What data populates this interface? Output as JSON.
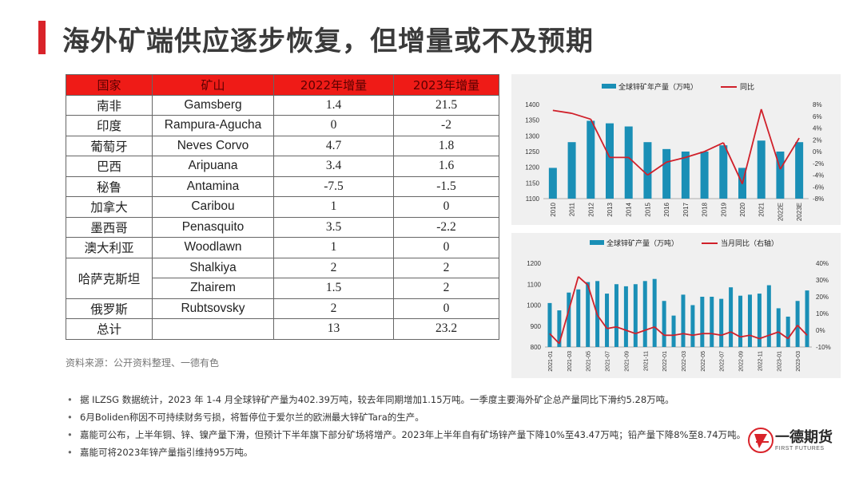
{
  "page": {
    "title": "海外矿端供应逐步恢复，但增量或不及预期"
  },
  "table": {
    "headers": [
      "国家",
      "矿山",
      "2022年增量",
      "2023年增量"
    ],
    "rows": [
      {
        "country": "南非",
        "mine": "Gamsberg",
        "v2022": "1.4",
        "v2023": "21.5"
      },
      {
        "country": "印度",
        "mine": "Rampura-Agucha",
        "v2022": "0",
        "v2023": "-2"
      },
      {
        "country": "葡萄牙",
        "mine": "Neves Corvo",
        "v2022": "4.7",
        "v2023": "1.8"
      },
      {
        "country": "巴西",
        "mine": "Aripuana",
        "v2022": "3.4",
        "v2023": "1.6"
      },
      {
        "country": "秘鲁",
        "mine": "Antamina",
        "v2022": "-7.5",
        "v2023": "-1.5"
      },
      {
        "country": "加拿大",
        "mine": "Caribou",
        "v2022": "1",
        "v2023": "0"
      },
      {
        "country": "墨西哥",
        "mine": "Penasquito",
        "v2022": "3.5",
        "v2023": "-2.2"
      },
      {
        "country": "澳大利亚",
        "mine": "Woodlawn",
        "v2022": "1",
        "v2023": "0"
      },
      {
        "country": "哈萨克斯坦",
        "mine": "Shalkiya",
        "v2022": "2",
        "v2023": "2"
      },
      {
        "country": "",
        "mine": "Zhairem",
        "v2022": "1.5",
        "v2023": "2"
      },
      {
        "country": "俄罗斯",
        "mine": "Rubtsovsky",
        "v2022": "2",
        "v2023": "0"
      },
      {
        "country": "总计",
        "mine": "",
        "v2022": "13",
        "v2023": "23.2"
      }
    ]
  },
  "source": "资料来源：公开资料整理、一德有色",
  "chart_data": [
    {
      "type": "bar",
      "categories": [
        "2010",
        "2011",
        "2012",
        "2013",
        "2014",
        "2015",
        "2016",
        "2017",
        "2018",
        "2019",
        "2020",
        "2021",
        "2022E",
        "2023E"
      ],
      "series": [
        {
          "name": "全球锌矿年产量（万吨）",
          "type": "bar",
          "axis": "left",
          "color": "#1a8fb6",
          "values": [
            1198,
            1280,
            1348,
            1340,
            1330,
            1280,
            1258,
            1250,
            1250,
            1270,
            1198,
            1285,
            1250,
            1280
          ]
        },
        {
          "name": "同比",
          "type": "line",
          "axis": "right",
          "color": "#d0202a",
          "values": [
            7.0,
            6.5,
            5.5,
            -1.0,
            -1.0,
            -4.0,
            -1.8,
            -1.0,
            0.0,
            1.5,
            -5.5,
            7.2,
            -3.0,
            2.3
          ]
        }
      ],
      "ylim": [
        1100,
        1400
      ],
      "yticks": [
        1100,
        1150,
        1200,
        1250,
        1300,
        1350,
        1400
      ],
      "ylim_right": [
        -8,
        8
      ],
      "yticks_right": [
        "-8%",
        "-6%",
        "-4%",
        "-2%",
        "0%",
        "2%",
        "4%",
        "6%",
        "8%"
      ],
      "legend": "top"
    },
    {
      "type": "bar",
      "categories": [
        "2021-01",
        "2021-02",
        "2021-03",
        "2021-04",
        "2021-05",
        "2021-06",
        "2021-07",
        "2021-08",
        "2021-09",
        "2021-10",
        "2021-11",
        "2021-12",
        "2022-01",
        "2022-02",
        "2022-03",
        "2022-04",
        "2022-05",
        "2022-06",
        "2022-07",
        "2022-08",
        "2022-09",
        "2022-10",
        "2022-11",
        "2022-12",
        "2023-01",
        "2023-02",
        "2023-03",
        "2023-04"
      ],
      "xtick_labels": [
        "2021-01",
        "2021-03",
        "2021-05",
        "2021-07",
        "2021-09",
        "2021-11",
        "2022-01",
        "2022-03",
        "2022-05",
        "2022-07",
        "2022-09",
        "2022-11",
        "2023-01",
        "2023-03"
      ],
      "series": [
        {
          "name": "全球锌矿产量（万吨）",
          "type": "bar",
          "axis": "left",
          "color": "#1a8fb6",
          "values": [
            1010,
            975,
            1060,
            1075,
            1110,
            1115,
            1055,
            1100,
            1090,
            1100,
            1115,
            1125,
            1020,
            950,
            1050,
            1000,
            1040,
            1040,
            1030,
            1085,
            1045,
            1050,
            1055,
            1095,
            985,
            945,
            1020,
            1070
          ]
        },
        {
          "name": "当月同比（右轴）",
          "type": "line",
          "axis": "right",
          "color": "#d0202a",
          "values": [
            -2,
            -8,
            12,
            32,
            27,
            9,
            1,
            2,
            0,
            -2,
            0,
            2,
            -3,
            -3,
            -2,
            -3,
            -2,
            -2,
            -3,
            -1,
            -4,
            -3,
            -5,
            -3,
            -1,
            -5,
            3,
            -3
          ]
        }
      ],
      "ylim": [
        800,
        1200
      ],
      "yticks": [
        800,
        900,
        1000,
        1100,
        1200
      ],
      "ylim_right": [
        -10,
        40
      ],
      "yticks_right": [
        "-10%",
        "0%",
        "10%",
        "20%",
        "30%",
        "40%"
      ],
      "legend": "top"
    }
  ],
  "notes": [
    "据 ILZSG 数据统计，2023 年 1-4 月全球锌矿产量为402.39万吨，较去年同期增加1.15万吨。一季度主要海外矿企总产量同比下滑约5.28万吨。",
    "6月Boliden称因不可持续财务亏损，将暂停位于爱尔兰的欧洲最大锌矿Tara的生产。",
    "嘉能可公布，上半年铜、锌、镍产量下滑，但预计下半年旗下部分矿场将增产。2023年上半年自有矿场锌产量下降10%至43.47万吨；铅产量下降8%至8.74万吨。",
    "嘉能可将2023年锌产量指引维持95万吨。"
  ],
  "logo": {
    "name": "一德期货",
    "sub": "FIRST FUTURES",
    "accent": "#d9232a"
  }
}
